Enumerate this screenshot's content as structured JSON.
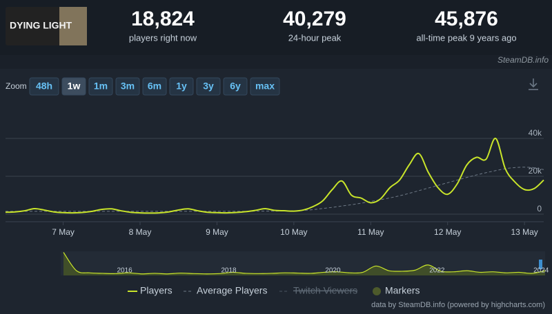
{
  "header": {
    "logo_text": "DYING LIGHT",
    "stats": [
      {
        "value": "18,824",
        "label": "players right now"
      },
      {
        "value": "40,279",
        "label": "24-hour peak"
      },
      {
        "value": "45,876",
        "label": "all-time peak 9 years ago"
      }
    ]
  },
  "watermark": "SteamDB.info",
  "zoom": {
    "label": "Zoom",
    "buttons": [
      "48h",
      "1w",
      "1m",
      "3m",
      "6m",
      "1y",
      "3y",
      "6y",
      "max"
    ],
    "selected": 1
  },
  "chart_data": {
    "type": "line",
    "categories": [
      null,
      null,
      null,
      null,
      null,
      null,
      "7 May",
      null,
      null,
      null,
      null,
      null,
      null,
      null,
      "8 May",
      null,
      null,
      null,
      null,
      null,
      null,
      null,
      "9 May",
      null,
      null,
      null,
      null,
      null,
      null,
      null,
      "10 May",
      null,
      null,
      null,
      null,
      null,
      null,
      null,
      "11 May",
      null,
      null,
      null,
      null,
      null,
      null,
      null,
      "12 May",
      null,
      null,
      null,
      null,
      null,
      null,
      null,
      "13 May",
      null,
      null
    ],
    "series": [
      {
        "name": "Players",
        "color": "#c9e52a",
        "values": [
          1000,
          1200,
          1800,
          2900,
          2200,
          1200,
          800,
          700,
          900,
          1500,
          2500,
          2800,
          1800,
          1000,
          700,
          600,
          700,
          1200,
          2200,
          2800,
          1800,
          1000,
          800,
          700,
          900,
          1300,
          2000,
          2900,
          2000,
          1800,
          1600,
          2200,
          4000,
          7000,
          13000,
          17500,
          10000,
          8500,
          6000,
          8000,
          14000,
          18000,
          26000,
          32000,
          22000,
          14000,
          10500,
          16000,
          26000,
          30000,
          29000,
          40000,
          24000,
          17000,
          13000,
          13500,
          18000
        ]
      },
      {
        "name": "Average Players",
        "color": "#6f7a87",
        "dashed": true,
        "values": [
          1500,
          1500,
          1500,
          1500,
          1500,
          1500,
          1500,
          1500,
          1500,
          1500,
          1500,
          1500,
          1500,
          1500,
          1500,
          1500,
          1500,
          1500,
          1500,
          1500,
          1500,
          1500,
          1500,
          1500,
          1500,
          1500,
          1600,
          1600,
          1600,
          1700,
          1800,
          2000,
          2400,
          3000,
          3600,
          4300,
          5000,
          5800,
          6700,
          7600,
          8600,
          9700,
          11000,
          12400,
          13800,
          15200,
          16600,
          18000,
          19400,
          20700,
          21900,
          23000,
          24000,
          24600,
          24800,
          24500,
          23500
        ]
      }
    ],
    "extra_legend": [
      {
        "name": "Twitch Viewers",
        "hidden": true,
        "color": "#4a5561"
      },
      {
        "name": "Markers",
        "color": "#4d5a2b"
      }
    ],
    "ylim": [
      0,
      60000
    ],
    "yticks": [
      0,
      {
        "value": 20000,
        "label": "20k"
      },
      {
        "value": 40000,
        "label": "40k"
      }
    ],
    "grid": true,
    "navigator": {
      "categories": [
        null,
        null,
        null,
        null,
        "2016",
        null,
        null,
        null,
        null,
        null,
        null,
        null,
        "2018",
        null,
        null,
        null,
        null,
        null,
        null,
        null,
        "2020",
        null,
        null,
        null,
        null,
        null,
        null,
        null,
        "2022",
        null,
        null,
        null,
        null,
        null,
        null,
        null,
        "2024",
        null
      ],
      "values": [
        44000,
        9000,
        5000,
        4000,
        3500,
        5000,
        3000,
        4000,
        3000,
        4500,
        3500,
        3000,
        3500,
        6000,
        4000,
        3500,
        4000,
        5000,
        4500,
        4000,
        6000,
        7000,
        5000,
        6000,
        18000,
        9000,
        8000,
        10000,
        20000,
        8000,
        7000,
        9000,
        6000,
        7000,
        5000,
        6000,
        4000,
        9000
      ],
      "ylim": [
        0,
        46000
      ]
    },
    "credits": "data by SteamDB.info (powered by highcharts.com)"
  }
}
